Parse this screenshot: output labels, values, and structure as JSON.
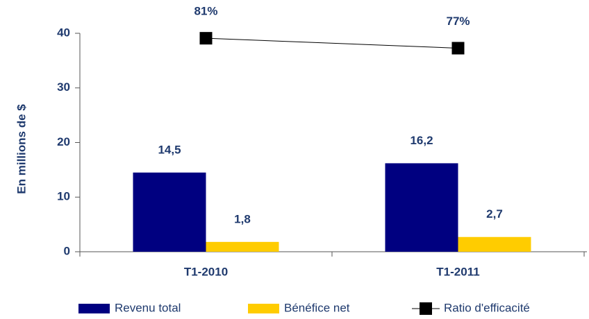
{
  "chart_data": {
    "type": "bar",
    "y_label": "En millions de $",
    "categories": [
      "T1-2010",
      "T1-2011"
    ],
    "series": [
      {
        "name": "Revenu total",
        "color": "#000080",
        "values": [
          14.5,
          16.2
        ],
        "value_labels": [
          "14,5",
          "16,2"
        ]
      },
      {
        "name": "Bénéfice net",
        "color": "#ffcc00",
        "values": [
          1.8,
          2.7
        ],
        "value_labels": [
          "1,8",
          "2,7"
        ]
      },
      {
        "name": "Ratio d'efficacité",
        "type": "line",
        "axis": "y2",
        "color": "#000000",
        "values": [
          81,
          77
        ],
        "value_labels": [
          "81%",
          "77%"
        ]
      }
    ],
    "ylim": [
      0,
      40
    ],
    "yticks": [
      0,
      10,
      20,
      30,
      40
    ],
    "y2lim": [
      -5,
      83
    ],
    "legend": "bottom"
  }
}
